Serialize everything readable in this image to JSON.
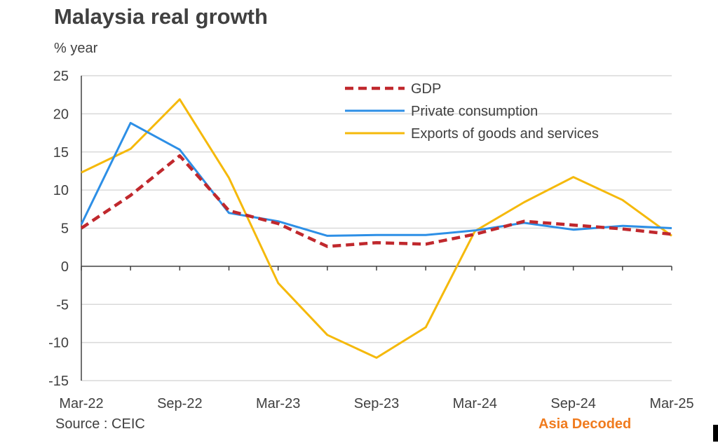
{
  "title": "Malaysia real growth",
  "y_unit": "% year",
  "source": "Source : CEIC",
  "brand": "Asia  Decoded",
  "colors": {
    "gdp": "#c0282d",
    "private": "#2d8fe6",
    "exports": "#f5b90b",
    "grid": "#d9d9d9",
    "axis": "#404040",
    "brand": "#f07b1e"
  },
  "chart_data": {
    "type": "line",
    "title": "Malaysia real growth",
    "ylabel": "% year",
    "ylim": [
      -15,
      25
    ],
    "y_ticks": [
      -15,
      -10,
      -5,
      0,
      5,
      10,
      15,
      20,
      25
    ],
    "x": [
      "Mar-22",
      "Jun-22",
      "Sep-22",
      "Dec-22",
      "Mar-23",
      "Jun-23",
      "Sep-23",
      "Dec-23",
      "Mar-24",
      "Jun-24",
      "Sep-24",
      "Dec-24",
      "Mar-25"
    ],
    "x_tick_labels": [
      "Mar-22",
      "Sep-22",
      "Mar-23",
      "Sep-23",
      "Mar-24",
      "Sep-24",
      "Mar-25"
    ],
    "grid": true,
    "legend_position": "top-right",
    "series": [
      {
        "name": "GDP",
        "style": "dashed",
        "color": "#c0282d",
        "values": [
          5.0,
          9.3,
          14.5,
          7.3,
          5.6,
          2.6,
          3.1,
          2.9,
          4.2,
          5.9,
          5.4,
          4.9,
          4.2
        ]
      },
      {
        "name": "Private consumption",
        "style": "solid",
        "color": "#2d8fe6",
        "values": [
          5.5,
          18.8,
          15.3,
          7.0,
          5.9,
          4.0,
          4.1,
          4.1,
          4.7,
          5.7,
          4.8,
          5.3,
          5.0
        ]
      },
      {
        "name": "Exports of goods and services",
        "style": "solid",
        "color": "#f5b90b",
        "values": [
          12.3,
          15.4,
          21.9,
          11.6,
          -2.2,
          -9.0,
          -12.0,
          -8.0,
          4.6,
          8.4,
          11.7,
          8.7,
          4.0
        ]
      }
    ]
  }
}
